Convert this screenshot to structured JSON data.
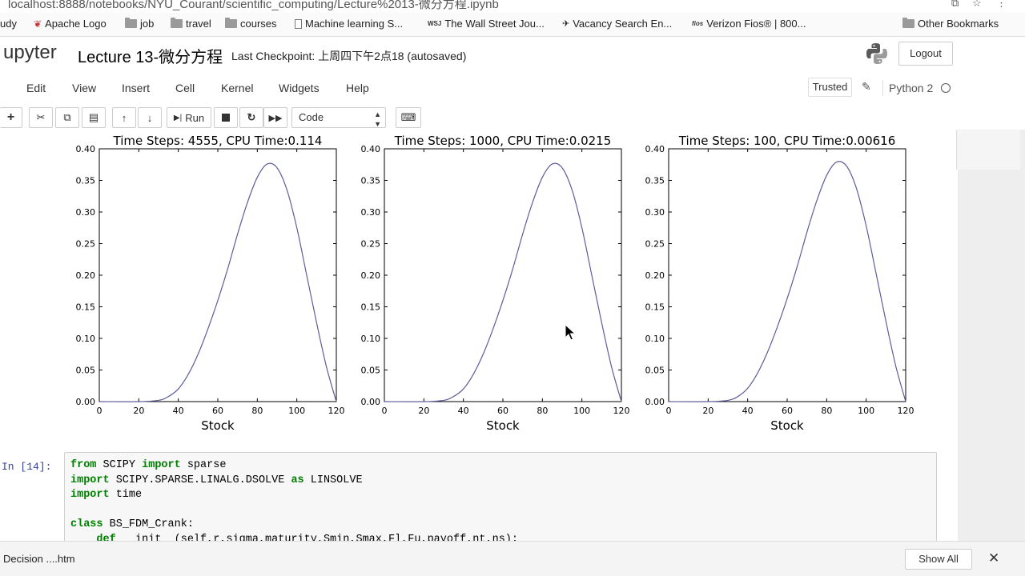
{
  "browser": {
    "url": "localhost:8888/notebooks/NYU_Courant/scientific_computing/Lecture%2013-微分方程.ipynb",
    "bookmarks": [
      {
        "label": "udy",
        "icon": "folder-icon"
      },
      {
        "label": "Apache Logo",
        "icon": "apache-feather-icon"
      },
      {
        "label": "job",
        "icon": "folder-icon"
      },
      {
        "label": "travel",
        "icon": "folder-icon"
      },
      {
        "label": "courses",
        "icon": "folder-icon"
      },
      {
        "label": "Machine learning S...",
        "icon": "page-icon"
      },
      {
        "label": "The Wall Street Jou...",
        "icon": "wsj-icon"
      },
      {
        "label": "Vacancy Search En...",
        "icon": "vacancy-icon"
      },
      {
        "label": "Verizon Fios® | 800...",
        "icon": "fios-icon"
      },
      {
        "label": "Other Bookmarks",
        "icon": "folder-icon"
      }
    ]
  },
  "jupyter": {
    "logo_text": "upyter",
    "notebook_title": "Lecture 13-微分方程",
    "checkpoint": "Last Checkpoint: 上周四下午2点18   (autosaved)",
    "logout_label": "Logout",
    "menu": [
      "Edit",
      "View",
      "Insert",
      "Cell",
      "Kernel",
      "Widgets",
      "Help"
    ],
    "trusted_label": "Trusted",
    "kernel_name": "Python 2",
    "toolbar": {
      "run_label": "Run",
      "cell_type": "Code"
    }
  },
  "chart_data": [
    {
      "type": "line",
      "title": "Time Steps: 4555, CPU Time:0.114",
      "xlabel": "Stock",
      "ylabel": "",
      "xlim": [
        0,
        120
      ],
      "ylim": [
        0,
        0.4
      ],
      "xticks": [
        "0",
        "20",
        "40",
        "60",
        "80",
        "100",
        "120"
      ],
      "yticks": [
        "0.00",
        "0.05",
        "0.10",
        "0.15",
        "0.20",
        "0.25",
        "0.30",
        "0.35",
        "0.40"
      ],
      "x": [
        0,
        20,
        30,
        35,
        40,
        45,
        50,
        55,
        60,
        65,
        70,
        75,
        80,
        85,
        90,
        95,
        100,
        105,
        110,
        115,
        120
      ],
      "y": [
        0,
        0,
        0.002,
        0.008,
        0.02,
        0.043,
        0.075,
        0.115,
        0.16,
        0.21,
        0.265,
        0.315,
        0.355,
        0.376,
        0.37,
        0.335,
        0.275,
        0.2,
        0.125,
        0.055,
        0.0
      ]
    },
    {
      "type": "line",
      "title": "Time Steps: 1000, CPU Time:0.0215",
      "xlabel": "Stock",
      "ylabel": "",
      "xlim": [
        0,
        120
      ],
      "ylim": [
        0,
        0.4
      ],
      "xticks": [
        "0",
        "20",
        "40",
        "60",
        "80",
        "100",
        "120"
      ],
      "yticks": [
        "0.00",
        "0.05",
        "0.10",
        "0.15",
        "0.20",
        "0.25",
        "0.30",
        "0.35",
        "0.40"
      ],
      "x": [
        0,
        20,
        30,
        35,
        40,
        45,
        50,
        55,
        60,
        65,
        70,
        75,
        80,
        85,
        90,
        95,
        100,
        105,
        110,
        115,
        120
      ],
      "y": [
        0,
        0,
        0.002,
        0.008,
        0.02,
        0.043,
        0.075,
        0.115,
        0.16,
        0.21,
        0.265,
        0.315,
        0.355,
        0.376,
        0.37,
        0.335,
        0.275,
        0.2,
        0.125,
        0.055,
        0.0
      ]
    },
    {
      "type": "line",
      "title": "Time Steps: 100, CPU Time:0.00616",
      "xlabel": "Stock",
      "ylabel": "",
      "xlim": [
        0,
        120
      ],
      "ylim": [
        0,
        0.4
      ],
      "xticks": [
        "0",
        "20",
        "40",
        "60",
        "80",
        "100",
        "120"
      ],
      "yticks": [
        "0.00",
        "0.05",
        "0.10",
        "0.15",
        "0.20",
        "0.25",
        "0.30",
        "0.35",
        "0.40"
      ],
      "x": [
        0,
        20,
        30,
        35,
        40,
        45,
        50,
        55,
        60,
        65,
        70,
        75,
        80,
        85,
        90,
        95,
        100,
        105,
        110,
        115,
        120
      ],
      "y": [
        0,
        0,
        0.002,
        0.008,
        0.021,
        0.045,
        0.078,
        0.118,
        0.163,
        0.213,
        0.268,
        0.318,
        0.358,
        0.379,
        0.373,
        0.338,
        0.278,
        0.203,
        0.127,
        0.056,
        0.0
      ]
    }
  ],
  "chart_style": {
    "line_color": "#5d5d9b"
  },
  "code_cell": {
    "prompt": "In [14]:",
    "lines": [
      [
        {
          "t": "from",
          "k": 1
        },
        {
          "t": " SCIPY ",
          "k": 0
        },
        {
          "t": "import",
          "k": 1
        },
        {
          "t": " sparse",
          "k": 0
        }
      ],
      [
        {
          "t": "import",
          "k": 1
        },
        {
          "t": " SCIPY.SPARSE.LINALG.DSOLVE ",
          "k": 0
        },
        {
          "t": "as",
          "k": 1
        },
        {
          "t": " LINSOLVE",
          "k": 0
        }
      ],
      [
        {
          "t": "import",
          "k": 1
        },
        {
          "t": " time",
          "k": 0
        }
      ],
      [],
      [
        {
          "t": "class",
          "k": 1
        },
        {
          "t": " BS_FDM_Crank:",
          "k": 0
        }
      ],
      [
        {
          "t": "    def",
          "k": 1
        },
        {
          "t": " __init__(self,r,sigma,maturity,Smin,Smax,Fl,Fu,payoff,nt,ns):",
          "k": 0
        }
      ]
    ]
  },
  "downloads": {
    "item": "Decision ....htm",
    "show_all_label": "Show All"
  }
}
